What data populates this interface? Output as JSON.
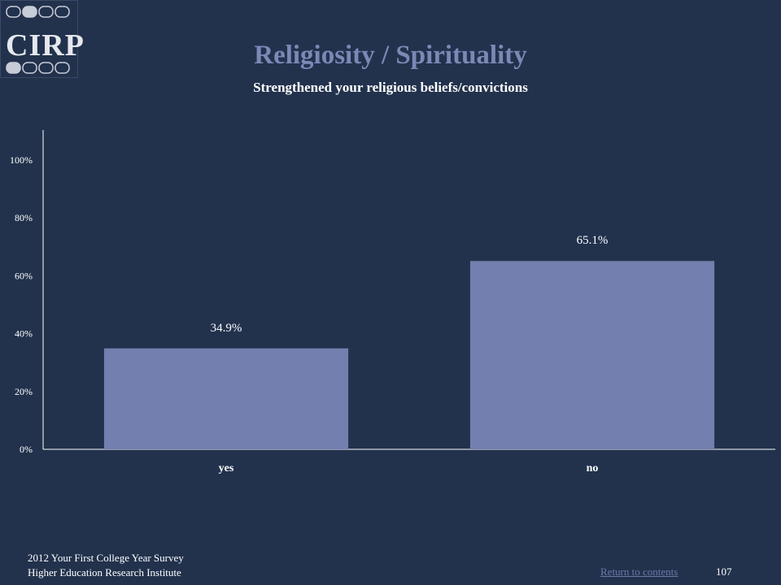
{
  "logo": {
    "text": "CIRP"
  },
  "title": "Religiosity / Spirituality",
  "subtitle": "Strengthened your religious beliefs/convictions",
  "colors": {
    "background": "#22324d",
    "bar": "#737fae",
    "title": "#7c88b5",
    "text": "#ffffff",
    "link": "#6a78a8"
  },
  "chart_data": {
    "type": "bar",
    "title": "Strengthened your religious beliefs/convictions",
    "categories": [
      "yes",
      "no"
    ],
    "values": [
      34.9,
      65.1
    ],
    "data_labels": [
      "34.9%",
      "65.1%"
    ],
    "ylim": [
      0,
      110
    ],
    "yticks": [
      0,
      20,
      40,
      60,
      80,
      100
    ],
    "ytick_labels": [
      "0%",
      "20%",
      "40%",
      "60%",
      "80%",
      "100%"
    ],
    "xlabel": "",
    "ylabel": "",
    "grid": false,
    "legend": "none"
  },
  "footer": {
    "line1": "2012 Your First College Year Survey",
    "line2": "Higher Education Research Institute",
    "return_link": "Return to contents",
    "page_number": "107"
  }
}
